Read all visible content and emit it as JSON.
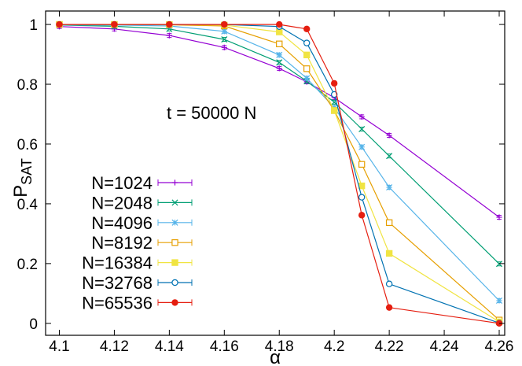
{
  "chart_data": {
    "type": "line",
    "title": "",
    "xlabel": "α",
    "ylabel": {
      "main": "P",
      "sub": "SAT"
    },
    "annotation": "t = 50000 N",
    "xlim": [
      4.095,
      4.262
    ],
    "ylim": [
      -0.04,
      1.045
    ],
    "xticks": [
      4.1,
      4.12,
      4.14,
      4.16,
      4.18,
      4.2,
      4.22,
      4.24,
      4.26
    ],
    "xtick_labels": [
      "4.1",
      "4.12",
      "4.14",
      "4.16",
      "4.18",
      "4.2",
      "4.22",
      "4.24",
      "4.26"
    ],
    "yticks": [
      0,
      0.2,
      0.4,
      0.6,
      0.8,
      1
    ],
    "ytick_labels": [
      "0",
      "0.2",
      "0.4",
      "0.6",
      "0.8",
      "1"
    ],
    "legend_position": "bottom-left",
    "series": [
      {
        "name": "N=1024",
        "label": "N=1024",
        "color": "#9400d3",
        "marker": "plus",
        "x": [
          4.1,
          4.12,
          4.14,
          4.16,
          4.18,
          4.19,
          4.2,
          4.21,
          4.22,
          4.26
        ],
        "y": [
          0.993,
          0.985,
          0.963,
          0.923,
          0.853,
          0.808,
          0.755,
          0.691,
          0.629,
          0.355
        ]
      },
      {
        "name": "N=2048",
        "label": "N=2048",
        "color": "#009e73",
        "marker": "cross",
        "x": [
          4.1,
          4.12,
          4.14,
          4.16,
          4.18,
          4.19,
          4.2,
          4.21,
          4.22,
          4.26
        ],
        "y": [
          0.998,
          0.994,
          0.985,
          0.95,
          0.873,
          0.81,
          0.74,
          0.65,
          0.56,
          0.199
        ]
      },
      {
        "name": "N=4096",
        "label": "N=4096",
        "color": "#56b4e9",
        "marker": "star",
        "x": [
          4.1,
          4.12,
          4.14,
          4.16,
          4.18,
          4.19,
          4.2,
          4.21,
          4.22,
          4.26
        ],
        "y": [
          0.999,
          0.998,
          0.995,
          0.977,
          0.898,
          0.82,
          0.722,
          0.59,
          0.455,
          0.076
        ]
      },
      {
        "name": "N=8192",
        "label": "N=8192",
        "color": "#e69f00",
        "marker": "open-square",
        "x": [
          4.1,
          4.12,
          4.14,
          4.16,
          4.18,
          4.19,
          4.2,
          4.21,
          4.22,
          4.26
        ],
        "y": [
          1.0,
          1.0,
          0.999,
          0.995,
          0.935,
          0.852,
          0.712,
          0.532,
          0.337,
          0.011
        ]
      },
      {
        "name": "N=16384",
        "label": "N=16384",
        "color": "#f0e442",
        "marker": "filled-square",
        "x": [
          4.1,
          4.12,
          4.14,
          4.16,
          4.18,
          4.19,
          4.2,
          4.21,
          4.22,
          4.26
        ],
        "y": [
          1.0,
          1.0,
          1.0,
          0.998,
          0.975,
          0.898,
          0.712,
          0.46,
          0.234,
          0.005
        ]
      },
      {
        "name": "N=32768",
        "label": "N=32768",
        "color": "#0072b2",
        "marker": "open-circle",
        "x": [
          4.1,
          4.12,
          4.14,
          4.16,
          4.18,
          4.19,
          4.2,
          4.21,
          4.22,
          4.26
        ],
        "y": [
          1.0,
          1.0,
          1.0,
          1.0,
          0.993,
          0.938,
          0.766,
          0.422,
          0.132,
          0.001
        ]
      },
      {
        "name": "N=65536",
        "label": "N=65536",
        "color": "#e51e10",
        "marker": "filled-circle",
        "x": [
          4.1,
          4.12,
          4.14,
          4.16,
          4.18,
          4.19,
          4.2,
          4.21,
          4.22,
          4.26
        ],
        "y": [
          1.0,
          1.0,
          1.0,
          1.0,
          1.0,
          0.985,
          0.803,
          0.362,
          0.053,
          0.0
        ]
      }
    ]
  }
}
